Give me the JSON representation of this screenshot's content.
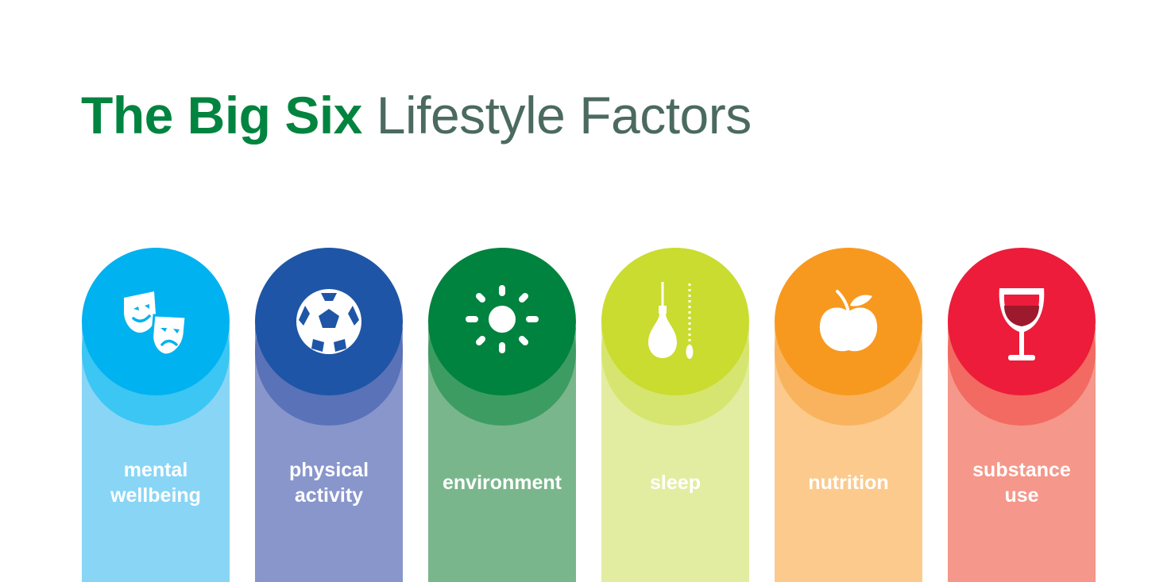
{
  "title": {
    "bold": "The Big Six",
    "light": "Lifestyle Factors"
  },
  "factors": [
    {
      "name": "mental-wellbeing",
      "label": [
        "mental",
        "wellbeing"
      ],
      "icon": "theater-masks-icon",
      "colors": {
        "disc": "#00b2ef",
        "shadow": "#3cc6f4",
        "column": "#89d5f6"
      }
    },
    {
      "name": "physical-activity",
      "label": [
        "physical",
        "activity"
      ],
      "icon": "soccer-ball-icon",
      "colors": {
        "disc": "#1e55a6",
        "shadow": "#5a72b8",
        "column": "#8996cc"
      }
    },
    {
      "name": "environment",
      "label": [
        "environment"
      ],
      "icon": "sun-icon",
      "colors": {
        "disc": "#00833e",
        "shadow": "#3d9c62",
        "column": "#7ab68c"
      }
    },
    {
      "name": "sleep",
      "label": [
        "sleep"
      ],
      "icon": "light-bulb-icon",
      "colors": {
        "disc": "#c9dc2f",
        "shadow": "#d6e570",
        "column": "#e3eda1"
      }
    },
    {
      "name": "nutrition",
      "label": [
        "nutrition"
      ],
      "icon": "apple-icon",
      "colors": {
        "disc": "#f7991f",
        "shadow": "#f9b35f",
        "column": "#fcca8d"
      }
    },
    {
      "name": "substance-use",
      "label": [
        "substance",
        "use"
      ],
      "icon": "wine-glass-icon",
      "colors": {
        "disc": "#ec1c3a",
        "shadow": "#f26a61",
        "column": "#f5978a"
      }
    }
  ]
}
